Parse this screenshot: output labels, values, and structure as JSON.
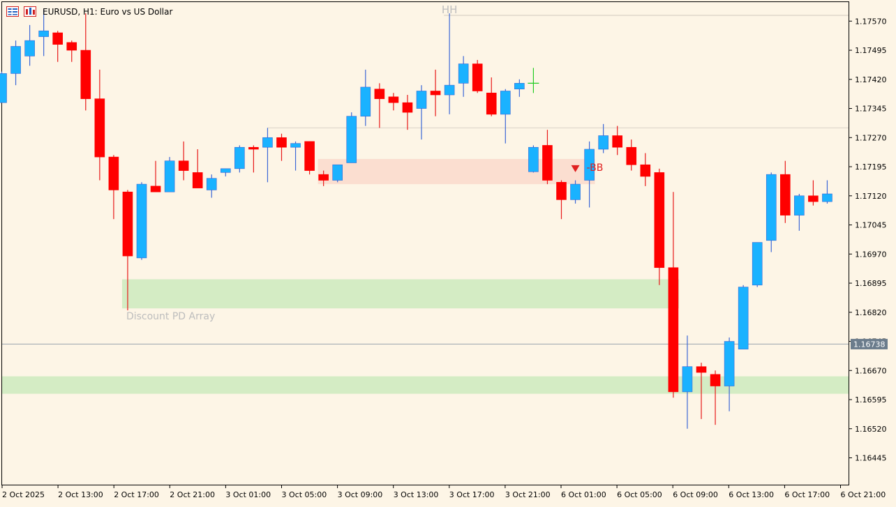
{
  "header": {
    "title": "EURUSD, H1:  Euro vs US Dollar"
  },
  "colors": {
    "background": "#fdf5e6",
    "bull": "#1ab2ff",
    "bear": "#ff0000",
    "bull_wick": "#3a66d6",
    "bear_wick": "#e81818",
    "discount_zone": "#d4ecc4",
    "bb_zone": "#fbded0",
    "bid_line": "#9aa4ae",
    "price_tag": "#6b7c8c",
    "grid_line": "#d9d2c6",
    "cursor": "#22cc22"
  },
  "chart_data": {
    "type": "candlestick",
    "symbol": "EURUSD",
    "timeframe": "H1",
    "ylim": [
      1.1639,
      1.17615
    ],
    "y_ticks": [
      "1.17570",
      "1.17495",
      "1.17420",
      "1.17345",
      "1.17270",
      "1.17195",
      "1.17120",
      "1.17045",
      "1.16970",
      "1.16895",
      "1.16820",
      "1.16745",
      "1.16670",
      "1.16595",
      "1.16520",
      "1.16445"
    ],
    "x_ticks": [
      "2 Oct 2025",
      "2 Oct 13:00",
      "2 Oct 17:00",
      "2 Oct 21:00",
      "3 Oct 01:00",
      "3 Oct 05:00",
      "3 Oct 09:00",
      "3 Oct 13:00",
      "3 Oct 17:00",
      "3 Oct 21:00",
      "6 Oct 01:00",
      "6 Oct 05:00",
      "6 Oct 09:00",
      "6 Oct 13:00",
      "6 Oct 17:00",
      "6 Oct 21:00"
    ],
    "candles": [
      {
        "o": 1.1736,
        "h": 1.1744,
        "l": 1.1736,
        "c": 1.17435
      },
      {
        "o": 1.17435,
        "h": 1.1752,
        "l": 1.17405,
        "c": 1.17505
      },
      {
        "o": 1.1748,
        "h": 1.1756,
        "l": 1.17455,
        "c": 1.1752
      },
      {
        "o": 1.1753,
        "h": 1.176,
        "l": 1.1748,
        "c": 1.17545
      },
      {
        "o": 1.1754,
        "h": 1.17545,
        "l": 1.17465,
        "c": 1.1751
      },
      {
        "o": 1.17515,
        "h": 1.1752,
        "l": 1.17465,
        "c": 1.17495
      },
      {
        "o": 1.17495,
        "h": 1.1759,
        "l": 1.1734,
        "c": 1.1737
      },
      {
        "o": 1.1737,
        "h": 1.17445,
        "l": 1.1716,
        "c": 1.1722
      },
      {
        "o": 1.1722,
        "h": 1.17225,
        "l": 1.1706,
        "c": 1.17135
      },
      {
        "o": 1.1713,
        "h": 1.17135,
        "l": 1.16825,
        "c": 1.16965
      },
      {
        "o": 1.1696,
        "h": 1.17155,
        "l": 1.16955,
        "c": 1.1715
      },
      {
        "o": 1.17145,
        "h": 1.1721,
        "l": 1.1713,
        "c": 1.1713
      },
      {
        "o": 1.1713,
        "h": 1.1722,
        "l": 1.1713,
        "c": 1.1721
      },
      {
        "o": 1.1721,
        "h": 1.1726,
        "l": 1.1716,
        "c": 1.17185
      },
      {
        "o": 1.1718,
        "h": 1.1724,
        "l": 1.1714,
        "c": 1.1714
      },
      {
        "o": 1.17135,
        "h": 1.17175,
        "l": 1.17115,
        "c": 1.17165
      },
      {
        "o": 1.1718,
        "h": 1.1719,
        "l": 1.1717,
        "c": 1.1719
      },
      {
        "o": 1.1719,
        "h": 1.1725,
        "l": 1.1718,
        "c": 1.17245
      },
      {
        "o": 1.17245,
        "h": 1.1725,
        "l": 1.1718,
        "c": 1.1724
      },
      {
        "o": 1.17245,
        "h": 1.17295,
        "l": 1.17155,
        "c": 1.1727
      },
      {
        "o": 1.1727,
        "h": 1.1728,
        "l": 1.1721,
        "c": 1.17245
      },
      {
        "o": 1.17245,
        "h": 1.1726,
        "l": 1.17185,
        "c": 1.17255
      },
      {
        "o": 1.1726,
        "h": 1.1726,
        "l": 1.17175,
        "c": 1.17185
      },
      {
        "o": 1.17175,
        "h": 1.17185,
        "l": 1.17145,
        "c": 1.1716
      },
      {
        "o": 1.1716,
        "h": 1.172,
        "l": 1.17155,
        "c": 1.172
      },
      {
        "o": 1.17205,
        "h": 1.17335,
        "l": 1.17205,
        "c": 1.17325
      },
      {
        "o": 1.17325,
        "h": 1.17445,
        "l": 1.173,
        "c": 1.174
      },
      {
        "o": 1.17395,
        "h": 1.1741,
        "l": 1.17295,
        "c": 1.1737
      },
      {
        "o": 1.17375,
        "h": 1.17385,
        "l": 1.1734,
        "c": 1.1736
      },
      {
        "o": 1.1736,
        "h": 1.1738,
        "l": 1.1729,
        "c": 1.17335
      },
      {
        "o": 1.17345,
        "h": 1.17405,
        "l": 1.17265,
        "c": 1.1739
      },
      {
        "o": 1.1739,
        "h": 1.17445,
        "l": 1.17325,
        "c": 1.1738
      },
      {
        "o": 1.1738,
        "h": 1.1759,
        "l": 1.1733,
        "c": 1.17405
      },
      {
        "o": 1.1741,
        "h": 1.1748,
        "l": 1.17375,
        "c": 1.1746
      },
      {
        "o": 1.1746,
        "h": 1.1747,
        "l": 1.17385,
        "c": 1.1739
      },
      {
        "o": 1.17385,
        "h": 1.17425,
        "l": 1.17325,
        "c": 1.1733
      },
      {
        "o": 1.1733,
        "h": 1.17395,
        "l": 1.17255,
        "c": 1.1739
      },
      {
        "o": 1.17395,
        "h": 1.1742,
        "l": 1.17375,
        "c": 1.1741
      },
      {
        "o": 1.17182,
        "h": 1.1725,
        "l": 1.1718,
        "c": 1.17245
      },
      {
        "o": 1.1725,
        "h": 1.1729,
        "l": 1.1715,
        "c": 1.1716
      },
      {
        "o": 1.17155,
        "h": 1.1716,
        "l": 1.1706,
        "c": 1.1711
      },
      {
        "o": 1.1711,
        "h": 1.1716,
        "l": 1.171,
        "c": 1.1715
      },
      {
        "o": 1.1716,
        "h": 1.1726,
        "l": 1.1709,
        "c": 1.1724
      },
      {
        "o": 1.1724,
        "h": 1.17305,
        "l": 1.1723,
        "c": 1.17275
      },
      {
        "o": 1.17275,
        "h": 1.173,
        "l": 1.17225,
        "c": 1.17245
      },
      {
        "o": 1.17245,
        "h": 1.17265,
        "l": 1.17185,
        "c": 1.172
      },
      {
        "o": 1.172,
        "h": 1.1723,
        "l": 1.17145,
        "c": 1.1717
      },
      {
        "o": 1.1718,
        "h": 1.1719,
        "l": 1.1689,
        "c": 1.16935
      },
      {
        "o": 1.16935,
        "h": 1.1713,
        "l": 1.166,
        "c": 1.16615
      },
      {
        "o": 1.16615,
        "h": 1.1676,
        "l": 1.1652,
        "c": 1.1668
      },
      {
        "o": 1.1668,
        "h": 1.1669,
        "l": 1.16545,
        "c": 1.16665
      },
      {
        "o": 1.1666,
        "h": 1.1667,
        "l": 1.1653,
        "c": 1.1663
      },
      {
        "o": 1.1663,
        "h": 1.16755,
        "l": 1.16565,
        "c": 1.16745
      },
      {
        "o": 1.16725,
        "h": 1.1689,
        "l": 1.16725,
        "c": 1.16885
      },
      {
        "o": 1.1689,
        "h": 1.17,
        "l": 1.16885,
        "c": 1.17
      },
      {
        "o": 1.17005,
        "h": 1.1718,
        "l": 1.16975,
        "c": 1.17175
      },
      {
        "o": 1.17175,
        "h": 1.1721,
        "l": 1.1705,
        "c": 1.1707
      },
      {
        "o": 1.1707,
        "h": 1.17125,
        "l": 1.1703,
        "c": 1.1712
      },
      {
        "o": 1.1712,
        "h": 1.1716,
        "l": 1.17095,
        "c": 1.17105
      },
      {
        "o": 1.17105,
        "h": 1.1716,
        "l": 1.171,
        "c": 1.17125
      }
    ],
    "current_price": "1.16738",
    "levels": [
      {
        "price": 1.17585,
        "label": "HH"
      },
      {
        "price": 1.17295,
        "label": ""
      }
    ],
    "zones": [
      {
        "name": "bb-zone",
        "top": 1.17215,
        "bottom": 1.1715,
        "from": 23,
        "to": 42,
        "label": "-BB"
      },
      {
        "name": "discount-zone",
        "top": 1.16905,
        "bottom": 1.1683,
        "from": 9,
        "to": 48,
        "label": "Discount PD Array"
      },
      {
        "name": "lower-zone",
        "top": 1.16655,
        "bottom": 1.1661,
        "from": 0,
        "to": 60,
        "label": ""
      }
    ]
  }
}
